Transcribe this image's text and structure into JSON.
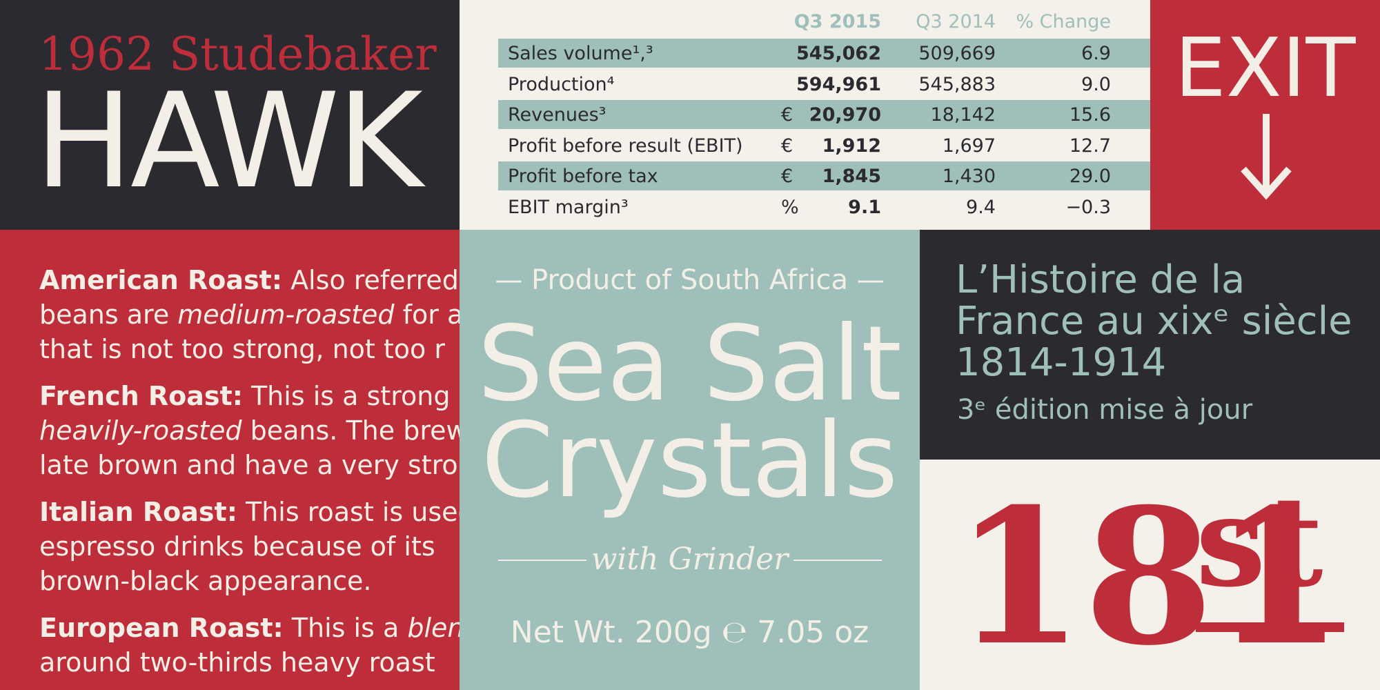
{
  "hawk": {
    "subtitle": "1962 Studebaker",
    "title": "HAWK"
  },
  "table": {
    "headers": [
      "Q3 2015",
      "Q3 2014",
      "% Change"
    ],
    "rows": [
      [
        "Sales volume¹,³",
        null,
        "545,062",
        "509,669",
        "6.9"
      ],
      [
        "Production⁴",
        null,
        "594,961",
        "545,883",
        "9.0"
      ],
      [
        "Revenues³",
        "€",
        "20,970",
        "18,142",
        "15.6"
      ],
      [
        "Profit before result (EBIT)",
        "€",
        "1,912",
        "1,697",
        "12.7"
      ],
      [
        "Profit before tax",
        "€",
        "1,845",
        "1,430",
        "29.0"
      ],
      [
        "EBIT margin³",
        "%",
        "9.1",
        "9.4",
        "−0.3"
      ]
    ]
  },
  "exit": {
    "sign": "EXIT"
  },
  "roasts": [
    [
      [
        {
          "text": "American Roast:",
          "style": "bold"
        },
        {
          "text": " Also referred"
        }
      ],
      [
        {
          "text": "beans are "
        },
        {
          "text": "medium-roasted",
          "style": "italic"
        },
        {
          "text": " for a"
        }
      ],
      [
        {
          "text": "that is not too strong, not too r"
        }
      ]
    ],
    [
      [
        {
          "text": "French Roast:",
          "style": "bold"
        },
        {
          "text": " This is a strong r"
        }
      ],
      [
        {
          "text": "heavily-roasted",
          "style": "italic"
        },
        {
          "text": " beans. The brew"
        }
      ],
      [
        {
          "text": "late brown and have a very stro"
        }
      ]
    ],
    [
      [
        {
          "text": "Italian Roast:",
          "style": "bold"
        },
        {
          "text": " This roast is used"
        }
      ],
      [
        {
          "text": "espresso drinks because of its"
        }
      ],
      [
        {
          "text": "brown-black appearance."
        }
      ]
    ],
    [
      [
        {
          "text": "European Roast:",
          "style": "bold"
        },
        {
          "text": " This is a "
        },
        {
          "text": "blend",
          "style": "italic"
        }
      ],
      [
        {
          "text": "around two-thirds heavy roast"
        }
      ]
    ]
  ],
  "salt": {
    "origin": "— Product of South Africa —",
    "line1": "Sea Salt",
    "line2": "Crystals",
    "extra": "with Grinder",
    "weight": "Net Wt. 200g ℮ 7.05 oz"
  },
  "history": {
    "lines": [
      "L’Histoire de la",
      "France au xixᵉ siècle",
      "1814-1914"
    ],
    "edition": "3ᵉ édition mise à jour"
  },
  "ordinal": {
    "number": "181",
    "suffix": "st"
  }
}
